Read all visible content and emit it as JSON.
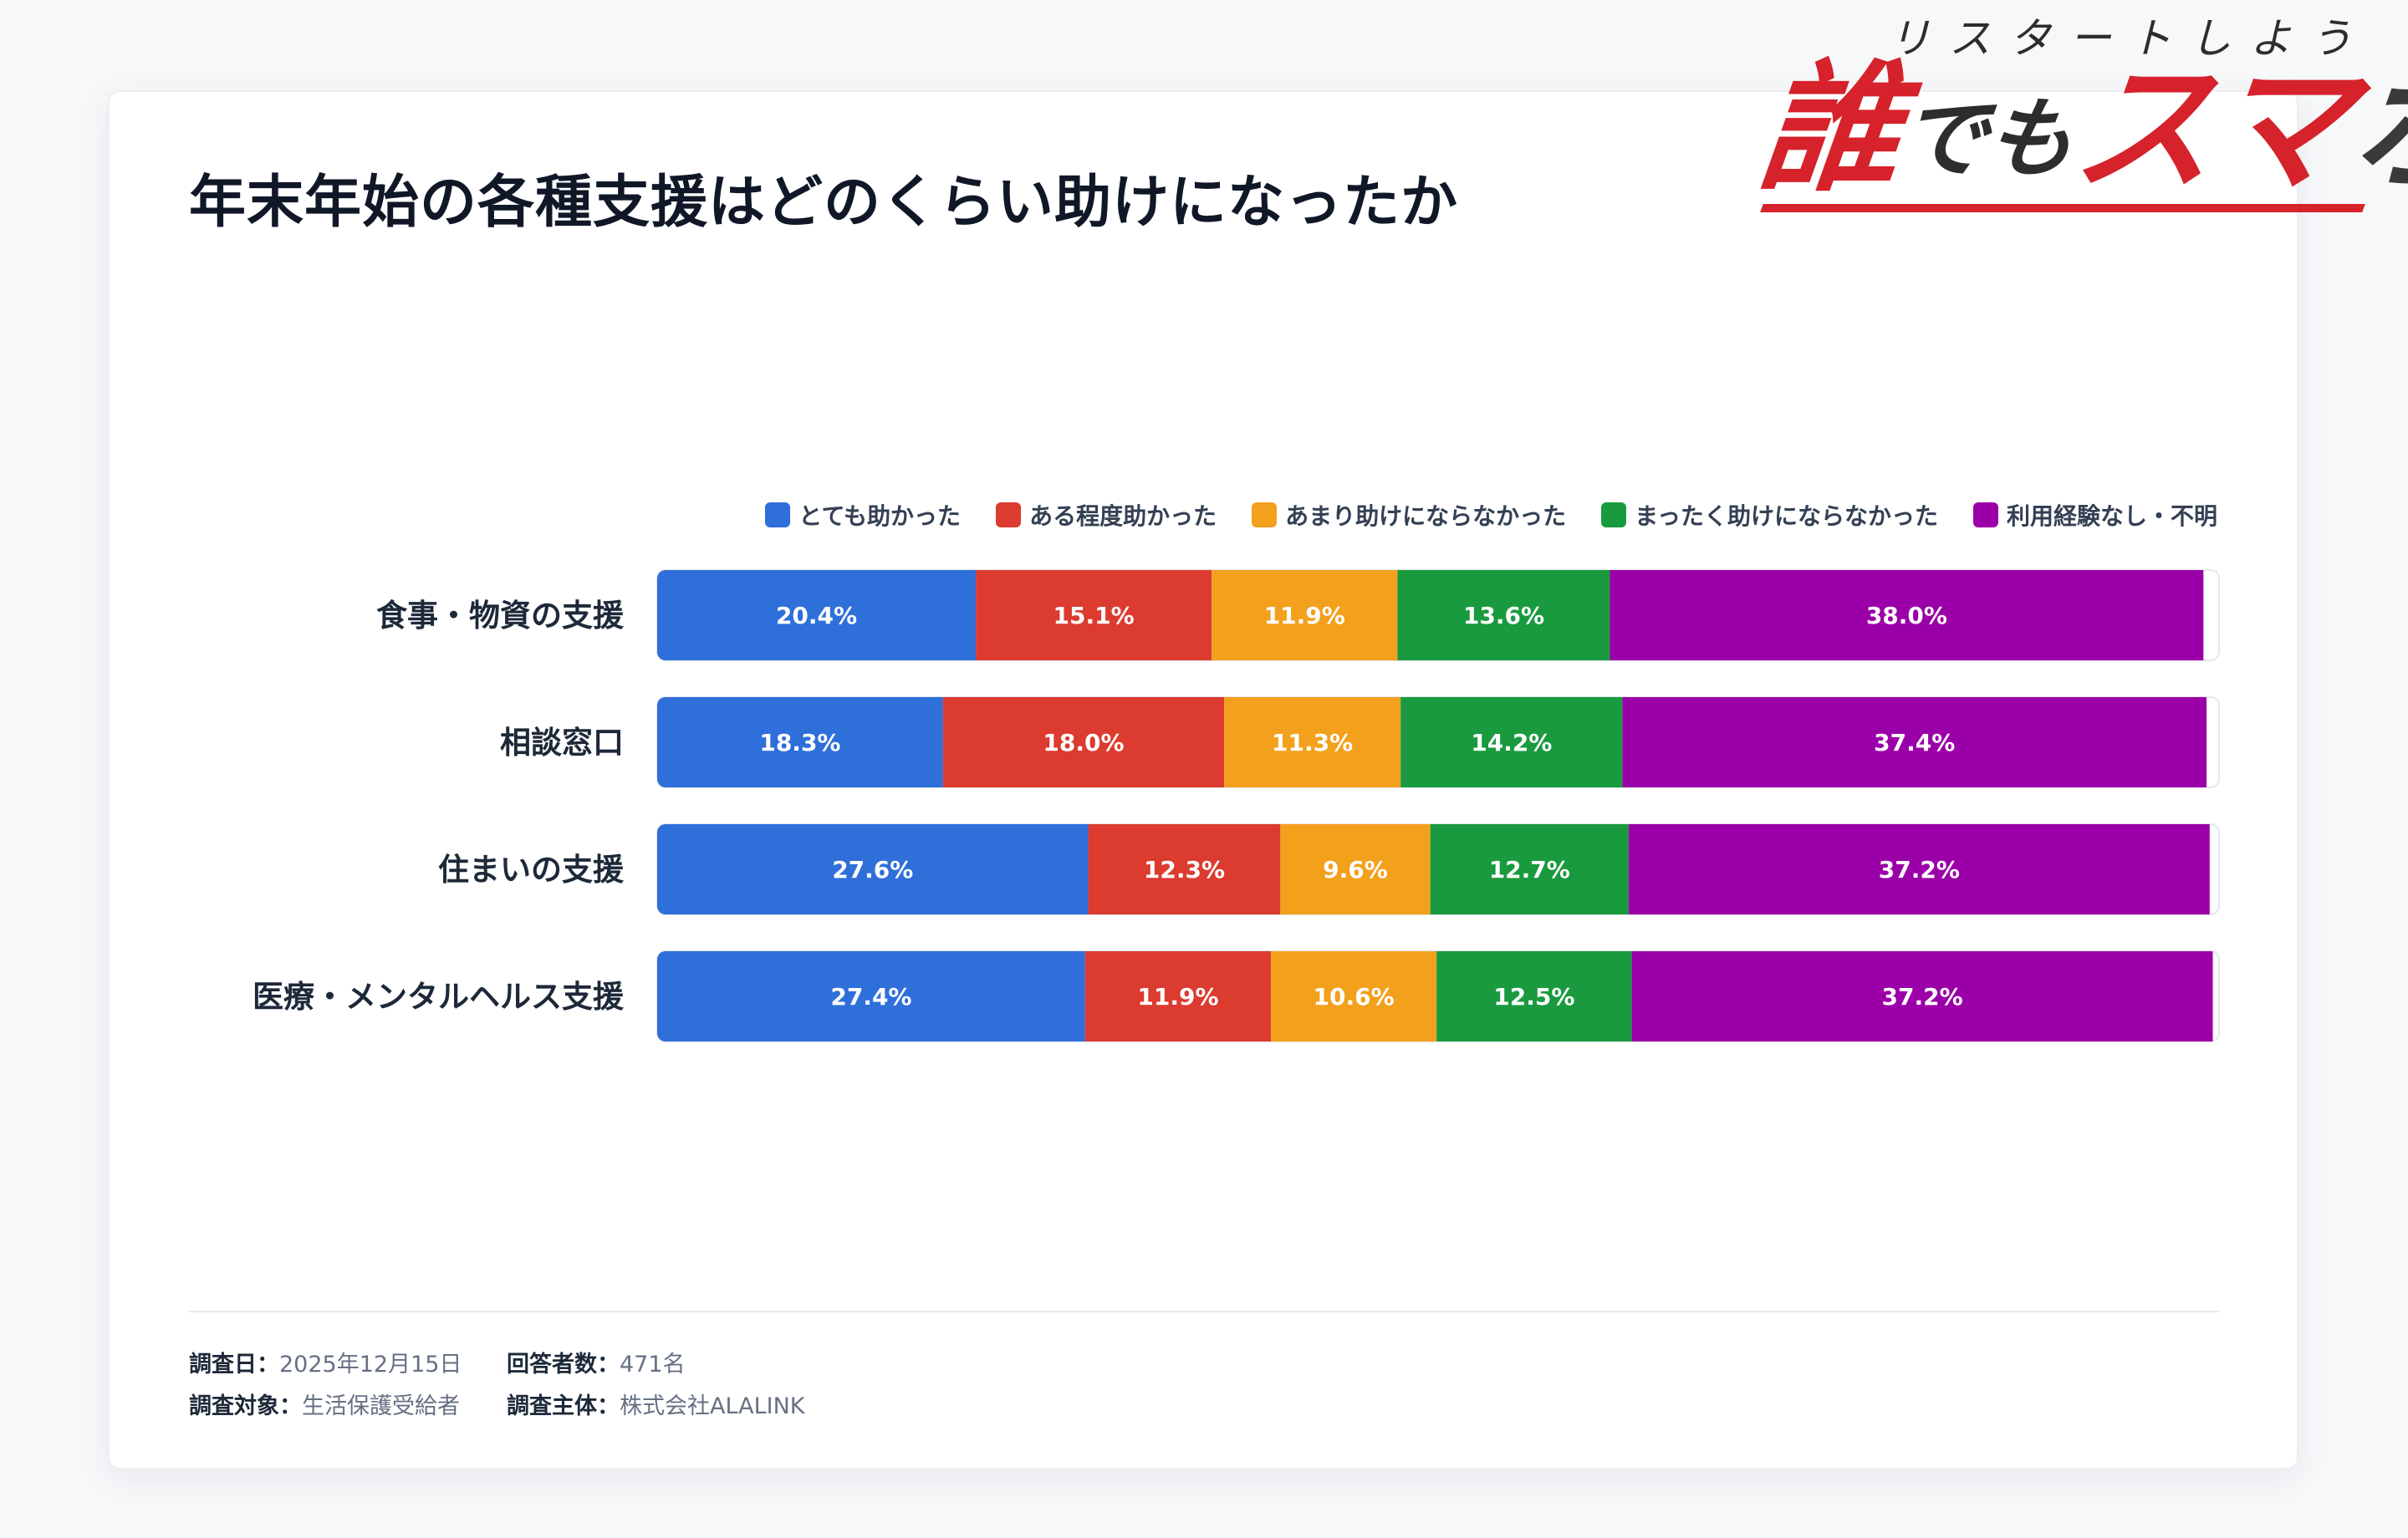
{
  "title": "年末年始の各種支援はどのくらい助けになったか",
  "logo": {
    "tagline": "リスタートしよう",
    "main_left": "誰",
    "main_mid": "でも",
    "main_right": "スマ",
    "main_end": "ホ"
  },
  "legend": [
    {
      "label": "とても助かった",
      "color": "#2f6fda"
    },
    {
      "label": "ある程度助かった",
      "color": "#dc3b2f"
    },
    {
      "label": "あまり助けにならなかった",
      "color": "#f3a01c"
    },
    {
      "label": "まったく助けにならなかった",
      "color": "#1a9a3f"
    },
    {
      "label": "利用経験なし・不明",
      "color": "#9b00a8"
    }
  ],
  "chart_data": {
    "type": "bar",
    "orientation": "horizontal",
    "stacked": true,
    "title": "年末年始の各種支援はどのくらい助けになったか",
    "categories": [
      "食事・物資の支援",
      "相談窓口",
      "住まいの支援",
      "医療・メンタルヘルス支援"
    ],
    "series": [
      {
        "name": "とても助かった",
        "color": "#2f6fda",
        "values": [
          20.4,
          18.3,
          27.6,
          27.4
        ]
      },
      {
        "name": "ある程度助かった",
        "color": "#dc3b2f",
        "values": [
          15.1,
          18.0,
          12.3,
          11.9
        ]
      },
      {
        "name": "あまり助けにならなかった",
        "color": "#f3a01c",
        "values": [
          11.9,
          11.3,
          9.6,
          10.6
        ]
      },
      {
        "name": "まったく助けにならなかった",
        "color": "#1a9a3f",
        "values": [
          13.6,
          14.2,
          12.7,
          12.5
        ]
      },
      {
        "name": "利用経験なし・不明",
        "color": "#9b00a8",
        "values": [
          38.0,
          37.4,
          37.2,
          37.2
        ]
      }
    ],
    "xlim": [
      0,
      100
    ],
    "value_format": "{v}%",
    "legend_position": "top-right"
  },
  "footer": {
    "date_label": "調査日：",
    "date_value": "2025年12月15日",
    "respondents_label": "回答者数：",
    "respondents_value": "471名",
    "target_label": "調査対象：",
    "target_value": "生活保護受給者",
    "sponsor_label": "調査主体：",
    "sponsor_value": "株式会社ALALINK"
  }
}
